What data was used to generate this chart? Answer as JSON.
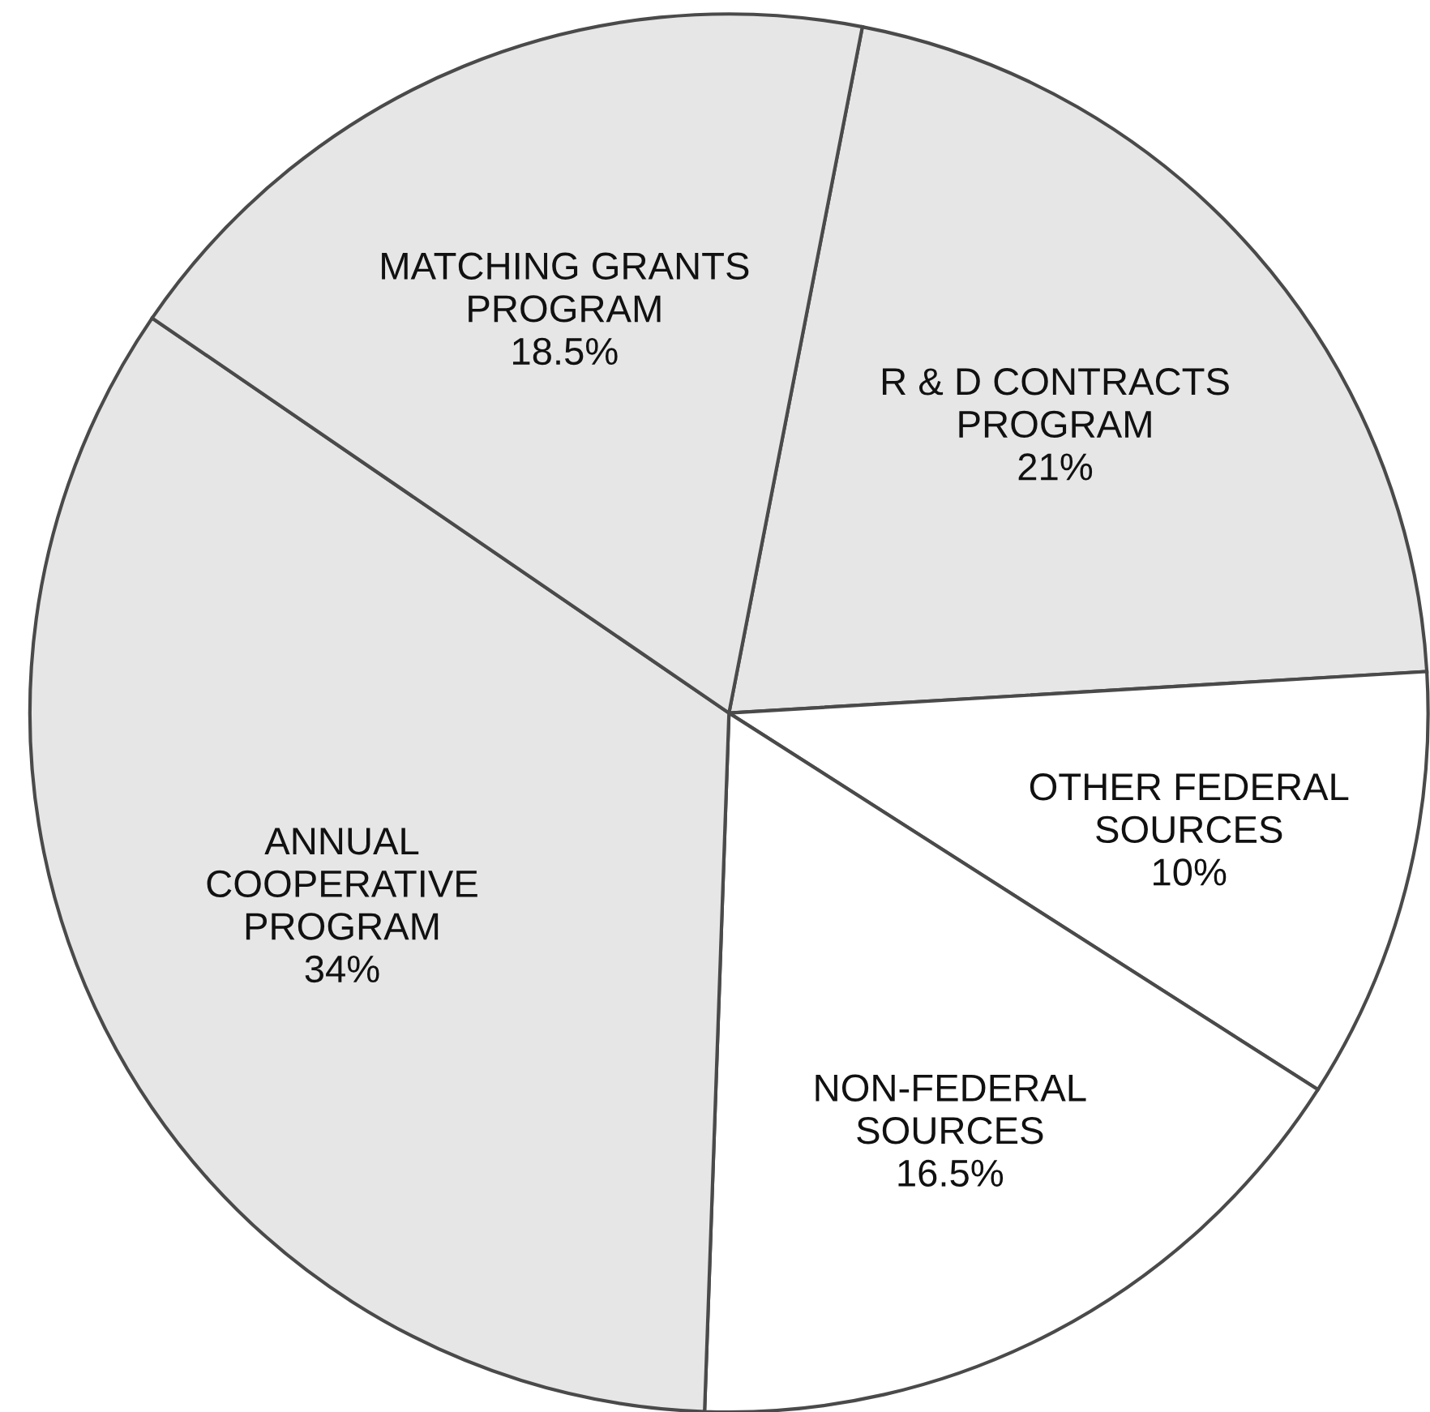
{
  "chart_data": {
    "type": "pie",
    "categories": [
      "R & D CONTRACTS\nPROGRAM",
      "OTHER FEDERAL\nSOURCES",
      "NON-FEDERAL\nSOURCES",
      "ANNUAL\nCOOPERATIVE\nPROGRAM",
      "MATCHING GRANTS\nPROGRAM"
    ],
    "values": [
      21,
      10,
      16.5,
      34,
      18.5
    ],
    "value_labels": [
      "21%",
      "10%",
      "16.5%",
      "34%",
      "18.5%"
    ],
    "colors": [
      "#e6e6e6",
      "#ffffff",
      "#ffffff",
      "#e6e6e6",
      "#e6e6e6"
    ]
  }
}
